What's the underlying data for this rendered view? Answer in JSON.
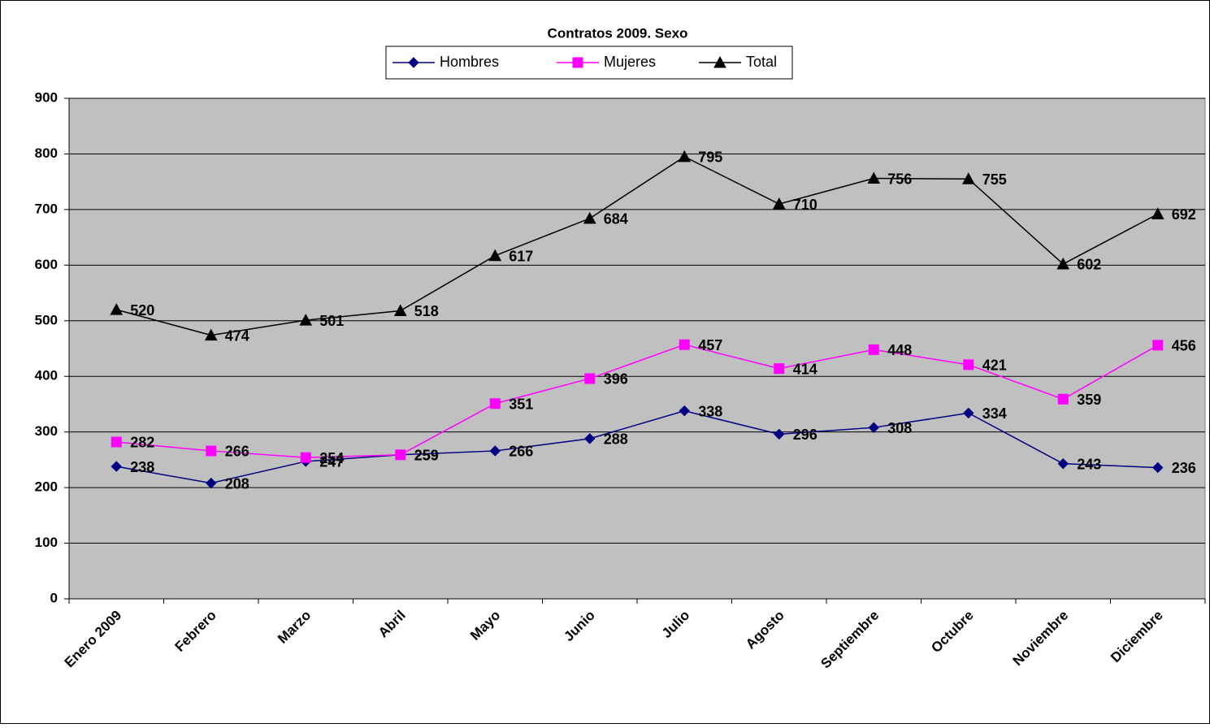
{
  "chart_data": {
    "type": "line",
    "title": "Contratos 2009. Sexo",
    "categories": [
      "Enero 2009",
      "Febrero",
      "Marzo",
      "Abril",
      "Mayo",
      "Junio",
      "Julio",
      "Agosto",
      "Septiembre",
      "Octubre",
      "Noviembre",
      "Diciembre"
    ],
    "series": [
      {
        "name": "Hombres",
        "color": "#000080",
        "marker": "diamond",
        "values": [
          238,
          208,
          247,
          259,
          266,
          288,
          338,
          296,
          308,
          334,
          243,
          236
        ]
      },
      {
        "name": "Mujeres",
        "color": "#ff00ff",
        "marker": "square",
        "values": [
          282,
          266,
          254,
          259,
          351,
          396,
          457,
          414,
          448,
          421,
          359,
          456
        ]
      },
      {
        "name": "Total",
        "color": "#000000",
        "marker": "triangle",
        "values": [
          520,
          474,
          501,
          518,
          617,
          684,
          795,
          710,
          756,
          755,
          602,
          692
        ]
      }
    ],
    "ylim": [
      0,
      900
    ],
    "yticks": [
      0,
      100,
      200,
      300,
      400,
      500,
      600,
      700,
      800,
      900
    ],
    "grid": true,
    "legend": "top",
    "plot_background": "#c0c0c0"
  }
}
